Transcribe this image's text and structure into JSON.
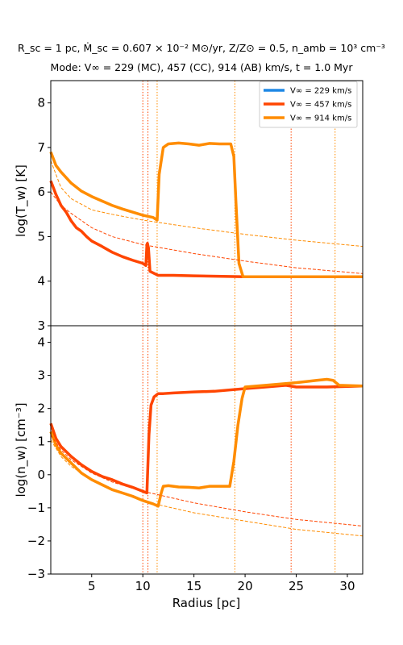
{
  "chart_data": {
    "type": "line",
    "title_lines": [
      "R_sc = 1 pc, Ṁ_sc = 0.607 × 10⁻² M⊙/yr, Z/Z⊙ = 0.5, n_amb = 10³ cm⁻³",
      "Mode: V∞ = 229 (MC), 457 (CC), 914 (AB) km/s, t = 1.0 Myr"
    ],
    "xlabel": "Radius [pc]",
    "xlim": [
      1.0,
      31.5
    ],
    "xticks": [
      5,
      10,
      15,
      20,
      25,
      30
    ],
    "shared_x": true,
    "grid": false,
    "legend": {
      "placement": "top-right",
      "entries": [
        {
          "label": "V∞ = 229 km/s",
          "color": "#1e88e5"
        },
        {
          "label": "V∞ = 457 km/s",
          "color": "#ff4500"
        },
        {
          "label": "V∞ = 914 km/s",
          "color": "#ff8c00"
        }
      ]
    },
    "vertical_markers": [
      {
        "x": 10.0,
        "color": "#ff4500",
        "style": "dotted"
      },
      {
        "x": 10.5,
        "color": "#ff4500",
        "style": "dotted"
      },
      {
        "x": 11.4,
        "color": "#ff8c00",
        "style": "dotted"
      },
      {
        "x": 19.0,
        "color": "#ff8c00",
        "style": "dotted"
      },
      {
        "x": 24.5,
        "color": "#ff4500",
        "style": "dotted"
      },
      {
        "x": 28.8,
        "color": "#ff8c00",
        "style": "dotted"
      }
    ],
    "panels": [
      {
        "ylabel": "log(T_w) [K]",
        "ylim": [
          3,
          8.5
        ],
        "yticks": [
          3,
          4,
          5,
          6,
          7,
          8
        ],
        "series": [
          {
            "name": "V∞ = 229 km/s",
            "color": "#1e88e5",
            "style": "solid",
            "x": [],
            "y": []
          },
          {
            "name": "V∞ = 457 km/s",
            "color": "#ff4500",
            "style": "solid",
            "x": [
              1.0,
              1.5,
              2.0,
              2.5,
              3.0,
              3.5,
              4.0,
              4.5,
              5.0,
              6.0,
              7.0,
              8.0,
              9.0,
              10.0,
              10.3,
              10.4,
              10.45,
              10.55,
              10.7,
              11.5,
              13,
              15,
              20,
              25,
              31.5
            ],
            "y": [
              6.25,
              5.95,
              5.7,
              5.55,
              5.35,
              5.2,
              5.12,
              5.0,
              4.9,
              4.78,
              4.65,
              4.55,
              4.47,
              4.4,
              4.35,
              4.82,
              4.85,
              4.75,
              4.22,
              4.13,
              4.13,
              4.12,
              4.1,
              4.1,
              4.1
            ]
          },
          {
            "name": "V∞ = 914 km/s",
            "color": "#ff8c00",
            "style": "solid",
            "x": [
              1.0,
              1.5,
              2.0,
              3.0,
              4.0,
              5.0,
              6.0,
              7.0,
              8.0,
              9.0,
              10.0,
              11.0,
              11.4,
              11.6,
              12.0,
              12.5,
              13.5,
              14.5,
              15.5,
              16.5,
              17.5,
              18.6,
              18.9,
              19.1,
              19.4,
              19.8,
              20.5,
              25,
              31.5
            ],
            "y": [
              6.9,
              6.6,
              6.45,
              6.2,
              6.02,
              5.9,
              5.8,
              5.7,
              5.62,
              5.55,
              5.48,
              5.43,
              5.37,
              6.4,
              7.0,
              7.08,
              7.1,
              7.08,
              7.05,
              7.09,
              7.08,
              7.08,
              6.8,
              5.8,
              4.4,
              4.1,
              4.1,
              4.1,
              4.1
            ]
          },
          {
            "name": "",
            "color": "#ff4500",
            "style": "dashed",
            "x": [
              1.0,
              2.0,
              3.0,
              5.0,
              7.0,
              10.0,
              15.0,
              20.0,
              25.0,
              31.5
            ],
            "y": [
              6.0,
              5.7,
              5.52,
              5.2,
              5.0,
              4.82,
              4.62,
              4.45,
              4.3,
              4.17
            ]
          },
          {
            "name": "",
            "color": "#ff8c00",
            "style": "dashed",
            "x": [
              1.0,
              2.0,
              3.0,
              5.0,
              7.0,
              10.0,
              15.0,
              20.0,
              25.0,
              31.5
            ],
            "y": [
              6.7,
              6.1,
              5.85,
              5.6,
              5.5,
              5.37,
              5.2,
              5.05,
              4.92,
              4.78
            ]
          }
        ]
      },
      {
        "ylabel": "log(n_w) [cm⁻³]",
        "ylim": [
          -3,
          4.5
        ],
        "yticks": [
          -3,
          -2,
          -1,
          0,
          1,
          2,
          3,
          4
        ],
        "series": [
          {
            "name": "V∞ = 229 km/s",
            "color": "#1e88e5",
            "style": "solid",
            "x": [],
            "y": []
          },
          {
            "name": "V∞ = 457 km/s",
            "color": "#ff4500",
            "style": "solid",
            "x": [
              1.0,
              1.5,
              2.0,
              3.0,
              4.0,
              5.0,
              6.0,
              7.0,
              8.0,
              9.0,
              10.0,
              10.4,
              10.6,
              10.8,
              11.1,
              11.5,
              12,
              13,
              15,
              17,
              20,
              22,
              24,
              25,
              28,
              31.5
            ],
            "y": [
              1.55,
              1.1,
              0.85,
              0.55,
              0.3,
              0.1,
              -0.05,
              -0.15,
              -0.28,
              -0.38,
              -0.5,
              -0.55,
              1.2,
              2.1,
              2.35,
              2.45,
              2.45,
              2.47,
              2.5,
              2.52,
              2.6,
              2.65,
              2.7,
              2.65,
              2.65,
              2.68
            ]
          },
          {
            "name": "V∞ = 914 km/s",
            "color": "#ff8c00",
            "style": "solid",
            "x": [
              1.0,
              1.5,
              2.0,
              3.0,
              4.0,
              5.0,
              6.0,
              7.0,
              8.0,
              9.0,
              10.0,
              11.0,
              11.5,
              11.8,
              12.0,
              12.5,
              13.5,
              14.5,
              15.5,
              16.5,
              18.5,
              18.9,
              19.3,
              19.7,
              20.0,
              22.0,
              25.0,
              27.0,
              28.0,
              28.6,
              29.2,
              31.5
            ],
            "y": [
              1.3,
              0.9,
              0.65,
              0.35,
              0.05,
              -0.15,
              -0.3,
              -0.45,
              -0.55,
              -0.65,
              -0.78,
              -0.88,
              -0.95,
              -0.55,
              -0.35,
              -0.33,
              -0.37,
              -0.38,
              -0.4,
              -0.35,
              -0.35,
              0.4,
              1.5,
              2.3,
              2.65,
              2.7,
              2.78,
              2.85,
              2.88,
              2.85,
              2.7,
              2.68
            ]
          },
          {
            "name": "",
            "color": "#ff4500",
            "style": "dashed",
            "x": [
              1.0,
              2.0,
              3.0,
              5.0,
              7.0,
              10.0,
              15.0,
              20.0,
              25.0,
              31.5
            ],
            "y": [
              1.2,
              0.75,
              0.45,
              0.05,
              -0.22,
              -0.5,
              -0.85,
              -1.12,
              -1.35,
              -1.55
            ]
          },
          {
            "name": "",
            "color": "#ff8c00",
            "style": "dashed",
            "x": [
              1.0,
              2.0,
              3.0,
              5.0,
              7.0,
              10.0,
              15.0,
              20.0,
              25.0,
              31.5
            ],
            "y": [
              1.05,
              0.55,
              0.25,
              -0.15,
              -0.45,
              -0.8,
              -1.15,
              -1.4,
              -1.65,
              -1.85
            ]
          }
        ]
      }
    ]
  }
}
